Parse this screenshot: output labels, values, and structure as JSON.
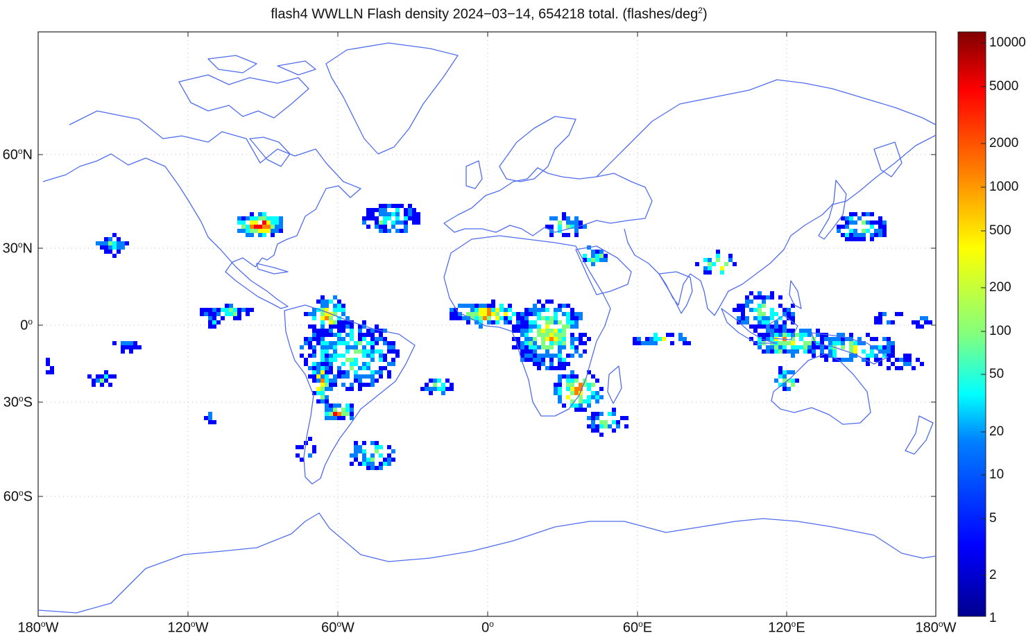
{
  "title": {
    "main": "flash4 WWLLN Flash density 2024−03−14, 654218 total. (flashes/deg",
    "exponent": "2",
    "close": ")"
  },
  "axes": {
    "lat_labels": [
      {
        "deg": "60",
        "sup": "o",
        "hem": "N"
      },
      {
        "deg": "30",
        "sup": "o",
        "hem": "N"
      },
      {
        "deg": "0",
        "sup": "o",
        "hem": ""
      },
      {
        "deg": "30",
        "sup": "o",
        "hem": "S"
      },
      {
        "deg": "60",
        "sup": "o",
        "hem": "S"
      }
    ],
    "lon_labels": [
      {
        "deg": "180",
        "sup": "o",
        "hem": "W"
      },
      {
        "deg": "120",
        "sup": "o",
        "hem": "W"
      },
      {
        "deg": "60",
        "sup": "o",
        "hem": "W"
      },
      {
        "deg": "0",
        "sup": "o",
        "hem": ""
      },
      {
        "deg": "60",
        "sup": "o",
        "hem": "E"
      },
      {
        "deg": "120",
        "sup": "o",
        "hem": "E"
      },
      {
        "deg": "180",
        "sup": "o",
        "hem": "W"
      }
    ]
  },
  "colorbar": {
    "ticks": [
      "10000",
      "5000",
      "2000",
      "1000",
      "500",
      "200",
      "100",
      "50",
      "20",
      "10",
      "5",
      "2",
      "1"
    ]
  },
  "colors": {
    "coastline": "#4f6cf0",
    "grid": "#bbbbbb",
    "scale": [
      "#00008f",
      "#0000ff",
      "#0080ff",
      "#00ffff",
      "#80ff80",
      "#ffff00",
      "#ff8000",
      "#ff0000",
      "#800000"
    ]
  }
}
